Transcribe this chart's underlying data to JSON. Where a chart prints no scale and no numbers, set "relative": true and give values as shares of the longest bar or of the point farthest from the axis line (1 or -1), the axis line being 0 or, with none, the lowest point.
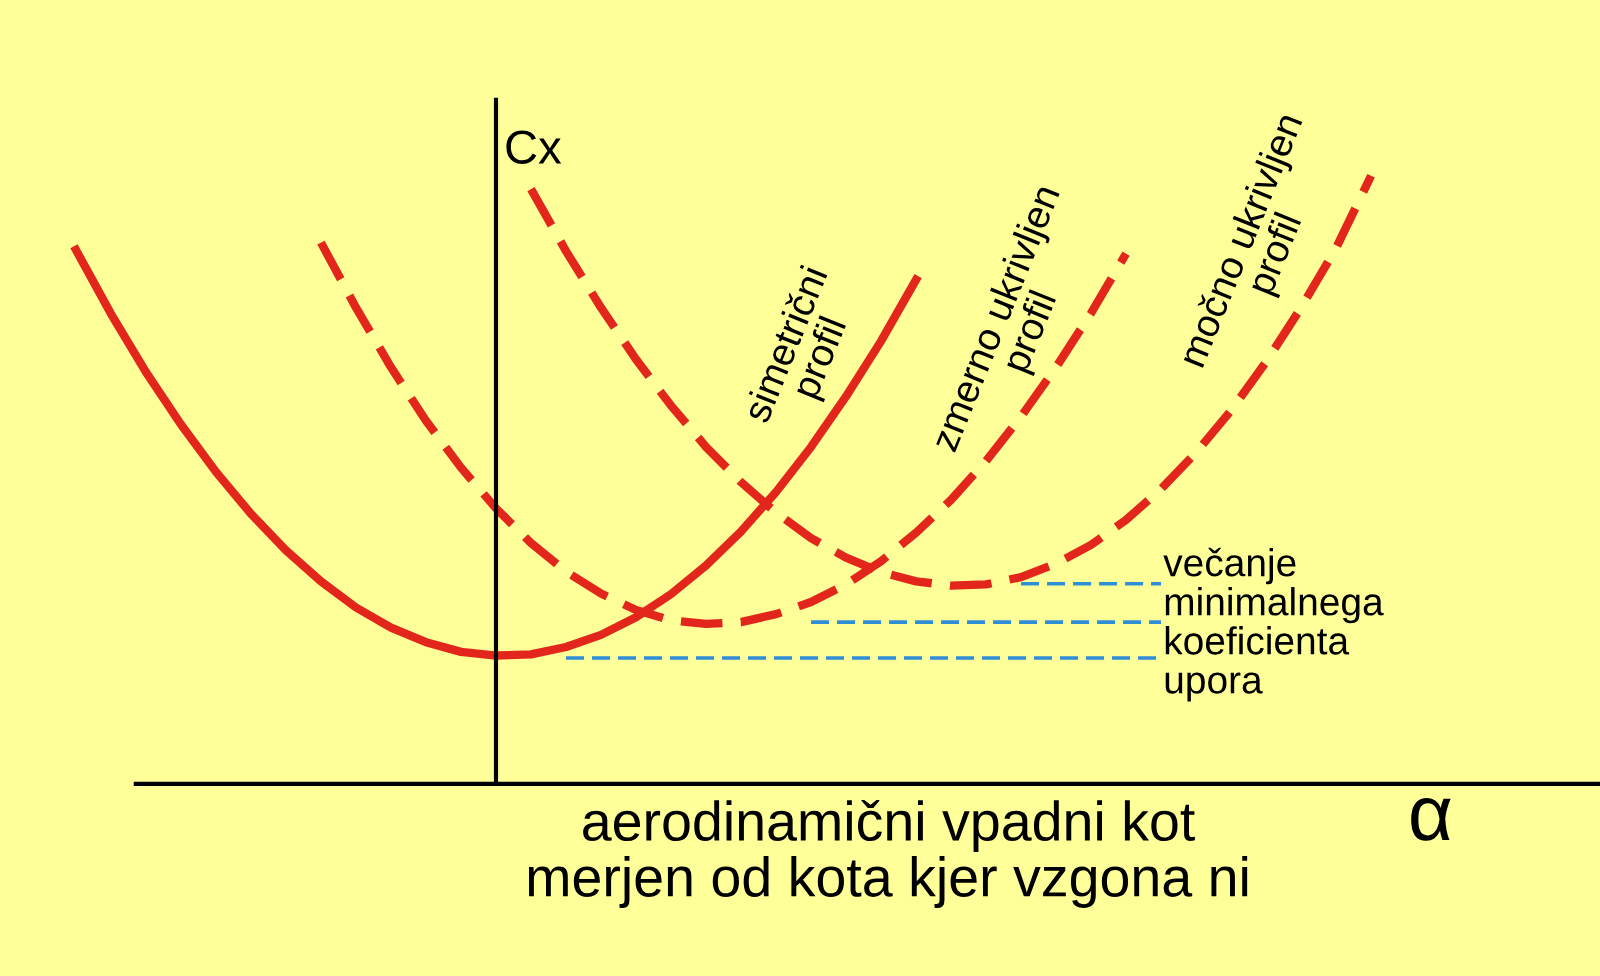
{
  "chart_data": {
    "type": "line",
    "relative": true,
    "legend": false,
    "xlabel": "α",
    "ylabel": "Cx",
    "annotations": [
      "aerodinamični vpadni kot\nmerjen od kota kjer vzgona ni",
      "večanje\nminimalnega\nkoeficienta\nupora"
    ],
    "categories": [
      null,
      null,
      null,
      null,
      null,
      null,
      null,
      null,
      null,
      null,
      null,
      null,
      null,
      null,
      null,
      null,
      null,
      null,
      null,
      null,
      null,
      null,
      null,
      null,
      null,
      null,
      null,
      null,
      null,
      null,
      null,
      null,
      null,
      null,
      null,
      null,
      null,
      null
    ],
    "series": [
      {
        "name": "simetrični\nprofil",
        "color": "#e3261c",
        "line_style": "solid",
        "values": [
          0.878,
          0.773,
          0.677,
          0.591,
          0.513,
          0.444,
          0.384,
          0.333,
          0.29,
          0.257,
          0.233,
          0.217,
          0.211,
          0.213,
          0.225,
          0.245,
          0.274,
          0.312,
          0.359,
          0.415,
          0.48,
          0.554,
          0.637,
          0.728,
          0.829,
          null,
          null,
          null,
          null,
          null,
          null,
          null,
          null,
          null,
          null,
          null,
          null,
          null
        ]
      },
      {
        "name": "zmerno ukrivljen\nprofil",
        "color": "#e3261c",
        "line_style": "dashed",
        "values": [
          null,
          null,
          null,
          null,
          null,
          null,
          null,
          0.89,
          0.783,
          0.685,
          0.597,
          0.52,
          0.453,
          0.396,
          0.349,
          0.313,
          0.286,
          0.269,
          0.263,
          0.266,
          0.279,
          0.299,
          0.328,
          0.366,
          0.413,
          0.467,
          0.531,
          0.604,
          0.685,
          0.774,
          0.872,
          null,
          null,
          null,
          null,
          null,
          null,
          null
        ]
      },
      {
        "name": "močno ukrivljen\nprofil",
        "color": "#e3261c",
        "line_style": "dashed",
        "values": [
          null,
          null,
          null,
          null,
          null,
          null,
          null,
          null,
          null,
          null,
          null,
          null,
          null,
          0.978,
          0.876,
          0.783,
          0.698,
          0.622,
          0.554,
          0.496,
          0.446,
          0.404,
          0.372,
          0.348,
          0.333,
          0.326,
          0.328,
          0.34,
          0.362,
          0.393,
          0.434,
          0.485,
          0.545,
          0.614,
          0.694,
          0.783,
          0.881,
          1.0
        ]
      },
      {
        "color": "#2f8fd6",
        "line_style": "dashed",
        "values": [
          null,
          null,
          null,
          null,
          null,
          null,
          null,
          null,
          null,
          null,
          null,
          null,
          null,
          null,
          null,
          null,
          null,
          null,
          null,
          null,
          null,
          null,
          null,
          null,
          null,
          null,
          null,
          0.329,
          0.329,
          0.329,
          0.329,
          0.329,
          null,
          null,
          null,
          null,
          null,
          null
        ]
      },
      {
        "color": "#2f8fd6",
        "line_style": "dashed",
        "values": [
          null,
          null,
          null,
          null,
          null,
          null,
          null,
          null,
          null,
          null,
          null,
          null,
          null,
          null,
          null,
          null,
          null,
          null,
          null,
          null,
          null,
          0.266,
          0.266,
          0.266,
          0.266,
          0.266,
          0.266,
          0.266,
          0.266,
          0.266,
          0.266,
          0.266,
          null,
          null,
          null,
          null,
          null,
          null
        ]
      },
      {
        "color": "#2f8fd6",
        "line_style": "dashed",
        "values": [
          null,
          null,
          null,
          null,
          null,
          null,
          null,
          null,
          null,
          null,
          null,
          null,
          null,
          null,
          0.207,
          0.207,
          0.207,
          0.207,
          0.207,
          0.207,
          0.207,
          0.207,
          0.207,
          0.207,
          0.207,
          0.207,
          0.207,
          0.207,
          0.207,
          0.207,
          0.207,
          0.207,
          null,
          null,
          null,
          null,
          null,
          null
        ]
      }
    ]
  }
}
